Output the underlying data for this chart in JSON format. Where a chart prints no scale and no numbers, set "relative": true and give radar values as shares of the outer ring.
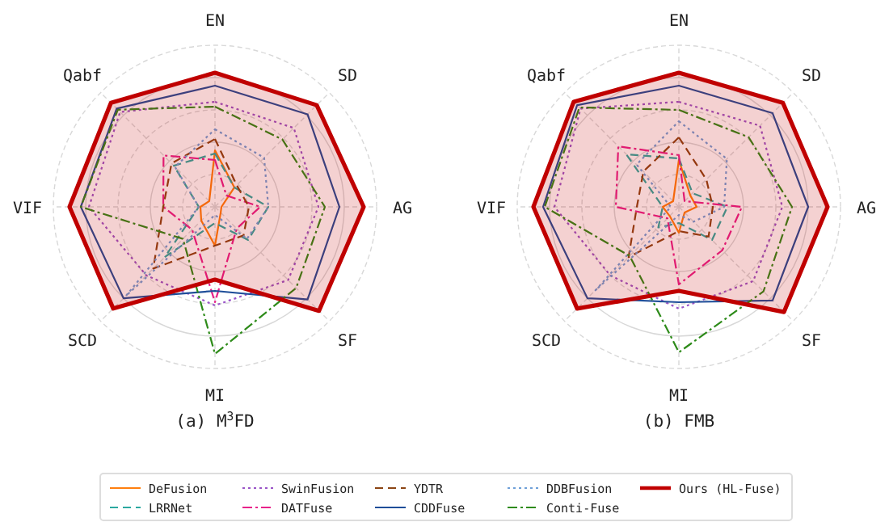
{
  "chart_data": [
    {
      "type": "radar",
      "title": "(a) M$^{3}$FD",
      "relative": true,
      "grid": true,
      "legend": "bottom",
      "categories": [
        "EN",
        "SD",
        "AG",
        "SF",
        "MI",
        "SCD",
        "VIF",
        "Qabf"
      ],
      "series": [
        {
          "name": "DeFusion",
          "color": "#ff7f0e",
          "line_style": "solid",
          "values": [
            0.35,
            0.17,
            0.04,
            0.05,
            0.24,
            0.12,
            0.09,
            0.05
          ]
        },
        {
          "name": "LRRNet",
          "color": "#2ca9a0",
          "line_style": "dashed",
          "values": [
            0.33,
            0.17,
            0.33,
            0.29,
            0.1,
            0.44,
            0.1,
            0.36
          ]
        },
        {
          "name": "SwinFusion",
          "color": "#9a55c8",
          "line_style": "dotted",
          "values": [
            0.65,
            0.69,
            0.64,
            0.64,
            0.61,
            0.6,
            0.78,
            0.83
          ]
        },
        {
          "name": "DATFuse",
          "color": "#e8228a",
          "line_style": "dashdot",
          "values": [
            0.29,
            0.1,
            0.28,
            0.19,
            0.59,
            0.2,
            0.32,
            0.45
          ]
        },
        {
          "name": "YDTR",
          "color": "#8b4513",
          "line_style": "dashed",
          "values": [
            0.42,
            0.19,
            0.21,
            0.25,
            0.24,
            0.54,
            0.32,
            0.38
          ]
        },
        {
          "name": "CDDFuse",
          "color": "#1f4e99",
          "line_style": "solid",
          "values": [
            0.75,
            0.81,
            0.77,
            0.81,
            0.52,
            0.8,
            0.83,
            0.86
          ]
        },
        {
          "name": "DDBFusion",
          "color": "#6fa0d8",
          "line_style": "dotted",
          "values": [
            0.48,
            0.43,
            0.33,
            0.28,
            0.05,
            0.78,
            0.1,
            0.35
          ]
        },
        {
          "name": "Conti-Fuse",
          "color": "#2e8b1a",
          "line_style": "dashdot",
          "values": [
            0.62,
            0.59,
            0.68,
            0.71,
            0.91,
            0.28,
            0.83,
            0.85
          ]
        },
        {
          "name": "Ours (HL-Fuse)",
          "color": "#c00000",
          "type": "area",
          "line_style": "solid",
          "values": [
            0.83,
            0.89,
            0.92,
            0.91,
            0.45,
            0.89,
            0.9,
            0.91
          ]
        }
      ]
    },
    {
      "type": "radar",
      "title": "(b) FMB",
      "relative": true,
      "grid": true,
      "categories": [
        "EN",
        "SD",
        "AG",
        "SF",
        "MI",
        "SCD",
        "VIF",
        "Qabf"
      ],
      "series": [
        {
          "color": "#ff7f0e",
          "line_style": "solid",
          "values": [
            0.29,
            0.1,
            0.11,
            0.05,
            0.16,
            0.08,
            0.1,
            0.05
          ]
        },
        {
          "color": "#2ca9a0",
          "line_style": "dashed",
          "values": [
            0.3,
            0.12,
            0.3,
            0.29,
            0.1,
            0.18,
            0.1,
            0.46
          ]
        },
        {
          "color": "#9a55c8",
          "line_style": "dotted",
          "values": [
            0.65,
            0.71,
            0.64,
            0.65,
            0.63,
            0.6,
            0.77,
            0.86
          ]
        },
        {
          "color": "#e8228a",
          "line_style": "dashdot",
          "values": [
            0.32,
            0.05,
            0.39,
            0.38,
            0.48,
            0.1,
            0.39,
            0.53
          ]
        },
        {
          "color": "#8b4513",
          "line_style": "dashed",
          "values": [
            0.43,
            0.24,
            0.21,
            0.26,
            0.15,
            0.44,
            0.26,
            0.31
          ]
        },
        {
          "color": "#1f4e99",
          "line_style": "solid",
          "values": [
            0.75,
            0.82,
            0.8,
            0.82,
            0.59,
            0.8,
            0.84,
            0.89
          ]
        },
        {
          "color": "#6fa0d8",
          "line_style": "dotted",
          "values": [
            0.53,
            0.42,
            0.28,
            0.13,
            0.05,
            0.73,
            0.05,
            0.37
          ]
        },
        {
          "color": "#2e8b1a",
          "line_style": "dashdot",
          "values": [
            0.6,
            0.61,
            0.7,
            0.74,
            0.9,
            0.43,
            0.83,
            0.87
          ]
        },
        {
          "color": "#c00000",
          "type": "area",
          "line_style": "solid",
          "values": [
            0.83,
            0.91,
            0.92,
            0.92,
            0.52,
            0.89,
            0.9,
            0.92
          ]
        }
      ]
    }
  ]
}
